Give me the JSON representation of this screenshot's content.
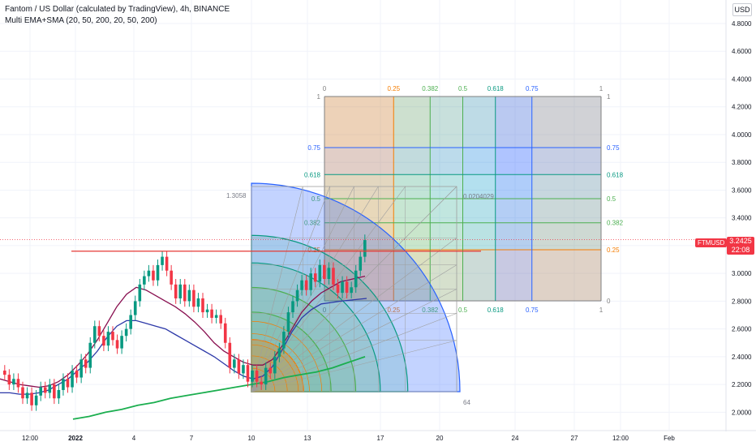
{
  "header": {
    "title": "Fantom / US Dollar (calculated by TradingView), 4h, BINANCE",
    "indicator": "Multi EMA+SMA (20, 50, 200, 20, 50, 200)"
  },
  "currency_badge": "USD",
  "price_tag": {
    "symbol": "FTMUSD",
    "price": "3.2425",
    "countdown": "22:08",
    "color": "#f23645"
  },
  "gann_box": {
    "levels": [
      "0",
      "0.25",
      "0.382",
      "0.5",
      "0.618",
      "0.75",
      "1"
    ],
    "level_colors": [
      "#808080",
      "#f57c00",
      "#4caf50",
      "#4caf50",
      "#089981",
      "#2962ff",
      "#808080"
    ],
    "box_label_top_left": "1.3058",
    "box_label_bottom": "64",
    "box_label_center": "0.0204029"
  },
  "chart_data": {
    "type": "candlestick",
    "title": "Fantom / US Dollar (calculated by TradingView), 4h, BINANCE",
    "y_ticks": [
      "4.8000",
      "4.6000",
      "4.4000",
      "4.2000",
      "4.0000",
      "3.8000",
      "3.6000",
      "3.4000",
      "3.2000",
      "3.0000",
      "2.8000",
      "2.6000",
      "2.4000",
      "2.2000",
      "2.0000"
    ],
    "x_ticks": [
      "12:00",
      "2022",
      "4",
      "7",
      "10",
      "13",
      "17",
      "20",
      "24",
      "27",
      "12:00",
      "Feb"
    ],
    "ylim": [
      1.92,
      4.92
    ],
    "last_price": 3.2425,
    "horizontal_line": 3.16,
    "candles": [
      [
        2.3,
        2.27
      ],
      [
        2.27,
        2.2
      ],
      [
        2.2,
        2.24
      ],
      [
        2.24,
        2.18
      ],
      [
        2.18,
        2.1
      ],
      [
        2.1,
        2.14
      ],
      [
        2.14,
        2.05
      ],
      [
        2.05,
        2.12
      ],
      [
        2.12,
        2.18
      ],
      [
        2.18,
        2.14
      ],
      [
        2.14,
        2.2
      ],
      [
        2.2,
        2.1
      ],
      [
        2.1,
        2.16
      ],
      [
        2.16,
        2.24
      ],
      [
        2.24,
        2.18
      ],
      [
        2.18,
        2.3
      ],
      [
        2.3,
        2.25
      ],
      [
        2.25,
        2.38
      ],
      [
        2.38,
        2.32
      ],
      [
        2.32,
        2.5
      ],
      [
        2.5,
        2.62
      ],
      [
        2.62,
        2.55
      ],
      [
        2.55,
        2.48
      ],
      [
        2.48,
        2.58
      ],
      [
        2.58,
        2.52
      ],
      [
        2.52,
        2.46
      ],
      [
        2.46,
        2.55
      ],
      [
        2.55,
        2.6
      ],
      [
        2.6,
        2.7
      ],
      [
        2.7,
        2.8
      ],
      [
        2.8,
        2.92
      ],
      [
        2.92,
        2.98
      ],
      [
        2.98,
        3.02
      ],
      [
        3.02,
        2.95
      ],
      [
        2.95,
        3.06
      ],
      [
        3.06,
        3.12
      ],
      [
        3.12,
        3.02
      ],
      [
        3.02,
        2.92
      ],
      [
        2.92,
        2.82
      ],
      [
        2.82,
        2.92
      ],
      [
        2.92,
        2.8
      ],
      [
        2.8,
        2.88
      ],
      [
        2.88,
        2.76
      ],
      [
        2.76,
        2.82
      ],
      [
        2.82,
        2.72
      ],
      [
        2.72,
        2.74
      ],
      [
        2.74,
        2.68
      ],
      [
        2.68,
        2.7
      ],
      [
        2.7,
        2.64
      ],
      [
        2.64,
        2.5
      ],
      [
        2.5,
        2.32
      ],
      [
        2.32,
        2.38
      ],
      [
        2.38,
        2.28
      ],
      [
        2.28,
        2.34
      ],
      [
        2.34,
        2.22
      ],
      [
        2.22,
        2.3
      ],
      [
        2.3,
        2.22
      ],
      [
        2.22,
        2.2
      ],
      [
        2.2,
        2.32
      ],
      [
        2.32,
        2.28
      ],
      [
        2.28,
        2.4
      ],
      [
        2.4,
        2.46
      ],
      [
        2.46,
        2.58
      ],
      [
        2.58,
        2.72
      ],
      [
        2.72,
        2.8
      ],
      [
        2.8,
        2.88
      ],
      [
        2.88,
        2.95
      ],
      [
        2.95,
        2.88
      ],
      [
        2.88,
        3.0
      ],
      [
        3.0,
        2.94
      ],
      [
        2.94,
        3.06
      ],
      [
        3.06,
        2.96
      ],
      [
        2.96,
        3.04
      ],
      [
        3.04,
        2.92
      ],
      [
        2.92,
        2.86
      ],
      [
        2.86,
        2.94
      ],
      [
        2.94,
        2.86
      ],
      [
        2.86,
        2.9
      ],
      [
        2.9,
        3.02
      ],
      [
        3.02,
        3.12
      ],
      [
        3.12,
        3.24
      ]
    ],
    "series": [
      {
        "name": "EMA 20",
        "color": "#880e4f",
        "values": [
          2.24,
          2.22,
          2.2,
          2.19,
          2.18,
          2.19,
          2.22,
          2.27,
          2.34,
          2.42,
          2.52,
          2.64,
          2.76,
          2.85,
          2.9,
          2.88,
          2.84,
          2.8,
          2.76,
          2.71,
          2.65,
          2.58,
          2.5,
          2.44,
          2.4,
          2.36,
          2.34,
          2.34,
          2.38,
          2.48,
          2.6,
          2.72,
          2.8,
          2.86,
          2.9,
          2.94,
          2.98
        ]
      },
      {
        "name": "EMA 50",
        "color": "#2c38a8",
        "values": [
          2.14,
          2.14,
          2.13,
          2.13,
          2.14,
          2.16,
          2.2,
          2.24,
          2.3,
          2.36,
          2.44,
          2.54,
          2.62,
          2.66,
          2.66,
          2.64,
          2.62,
          2.6,
          2.56,
          2.52,
          2.48,
          2.44,
          2.4,
          2.35,
          2.3,
          2.26,
          2.24,
          2.26,
          2.33,
          2.45,
          2.58,
          2.68,
          2.74,
          2.78,
          2.79,
          2.8,
          2.82
        ]
      },
      {
        "name": "EMA 200",
        "color": "#1bae4f",
        "values": [
          1.95,
          1.97,
          2.0,
          2.02,
          2.05,
          2.07,
          2.1,
          2.12,
          2.14,
          2.16,
          2.18,
          2.2,
          2.22,
          2.25,
          2.27,
          2.29,
          2.32,
          2.35,
          2.38,
          2.4
        ]
      }
    ]
  }
}
